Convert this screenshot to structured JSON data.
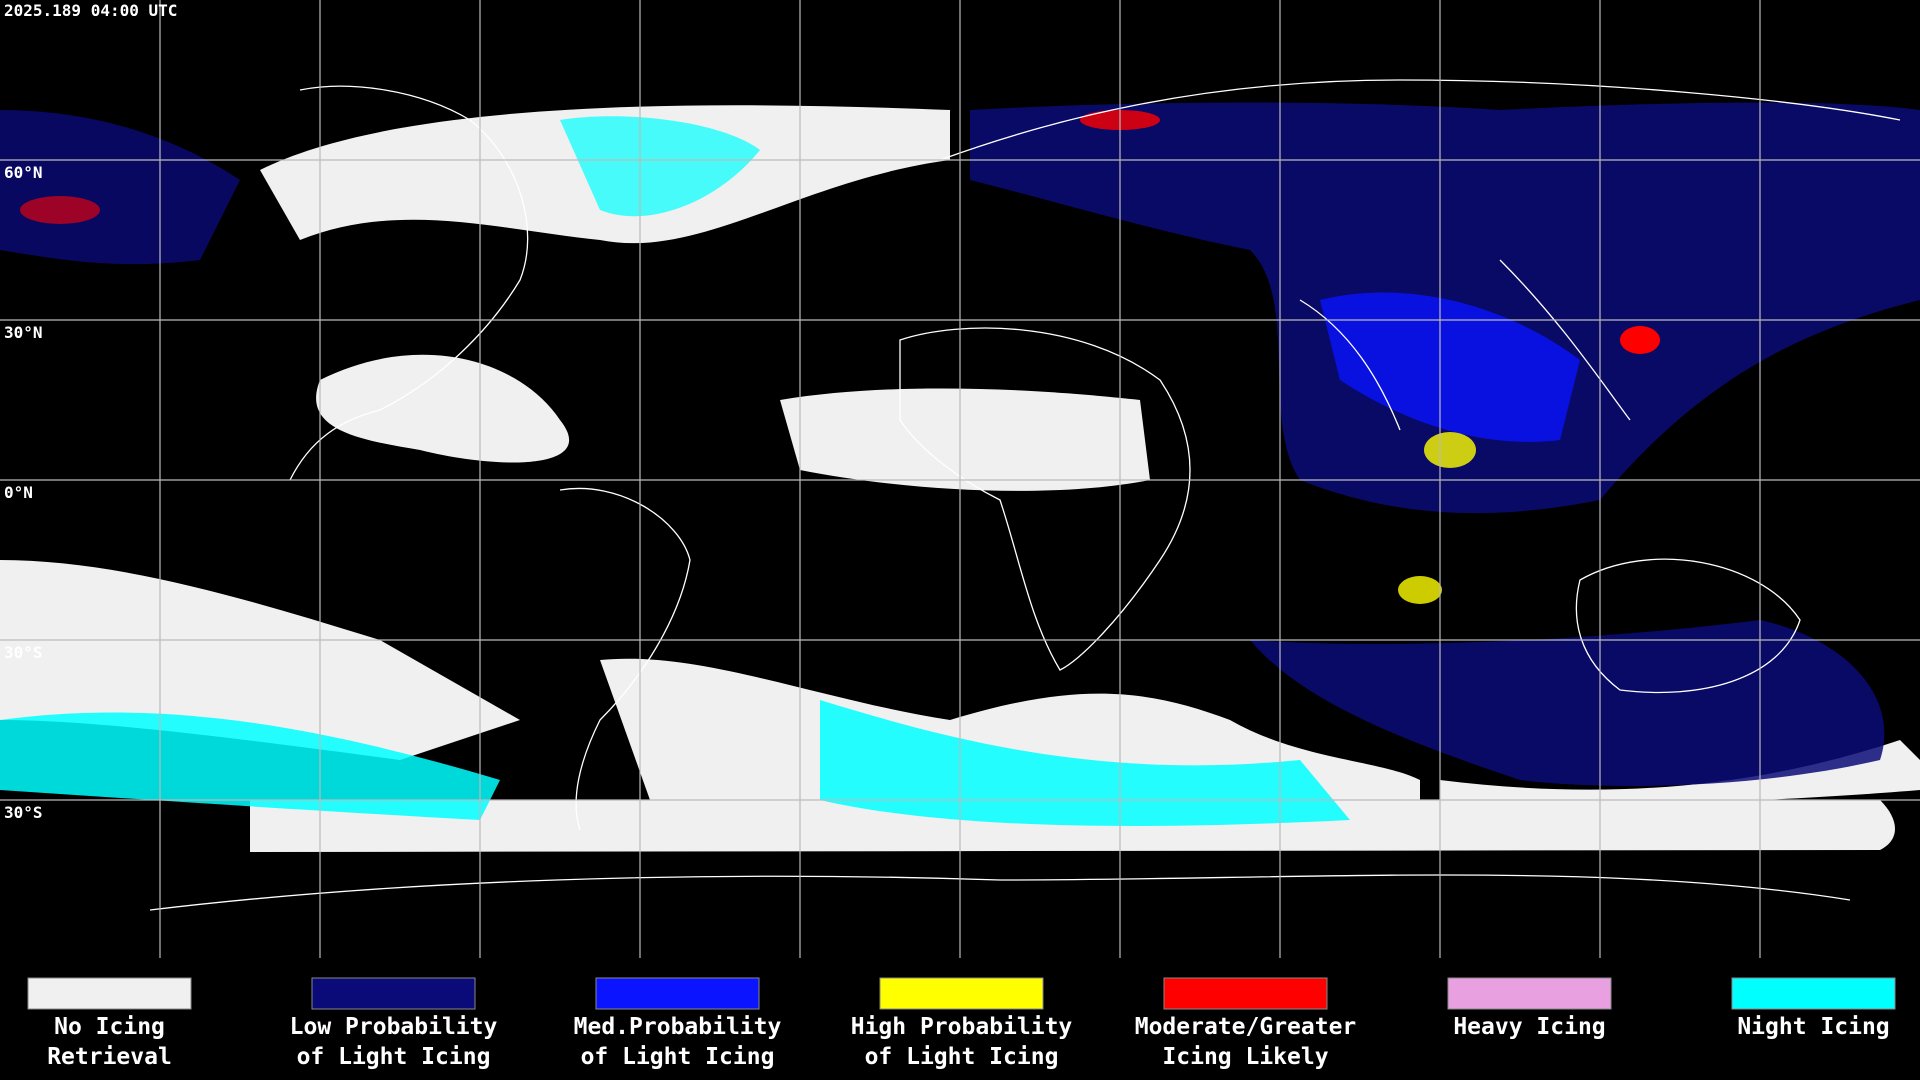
{
  "timestamp": "2025.189 04:00 UTC",
  "latitude_labels": [
    "60°N",
    "30°N",
    "0°N",
    "30°S",
    "30°S"
  ],
  "legend": [
    {
      "label": [
        "No Icing",
        "Retrieval"
      ],
      "color": "#f0f0f0"
    },
    {
      "label": [
        "Low Probability",
        "of Light Icing"
      ],
      "color": "#0a0a78"
    },
    {
      "label": [
        "Med.Probability",
        "of Light Icing"
      ],
      "color": "#0a14ff"
    },
    {
      "label": [
        "High Probability",
        "of Light Icing"
      ],
      "color": "#ffff00"
    },
    {
      "label": [
        "Moderate/Greater",
        "Icing Likely"
      ],
      "color": "#ff0000"
    },
    {
      "label": [
        "Heavy Icing"
      ],
      "color": "#e8a0e0"
    },
    {
      "label": [
        "Night Icing"
      ],
      "color": "#00ffff"
    }
  ]
}
